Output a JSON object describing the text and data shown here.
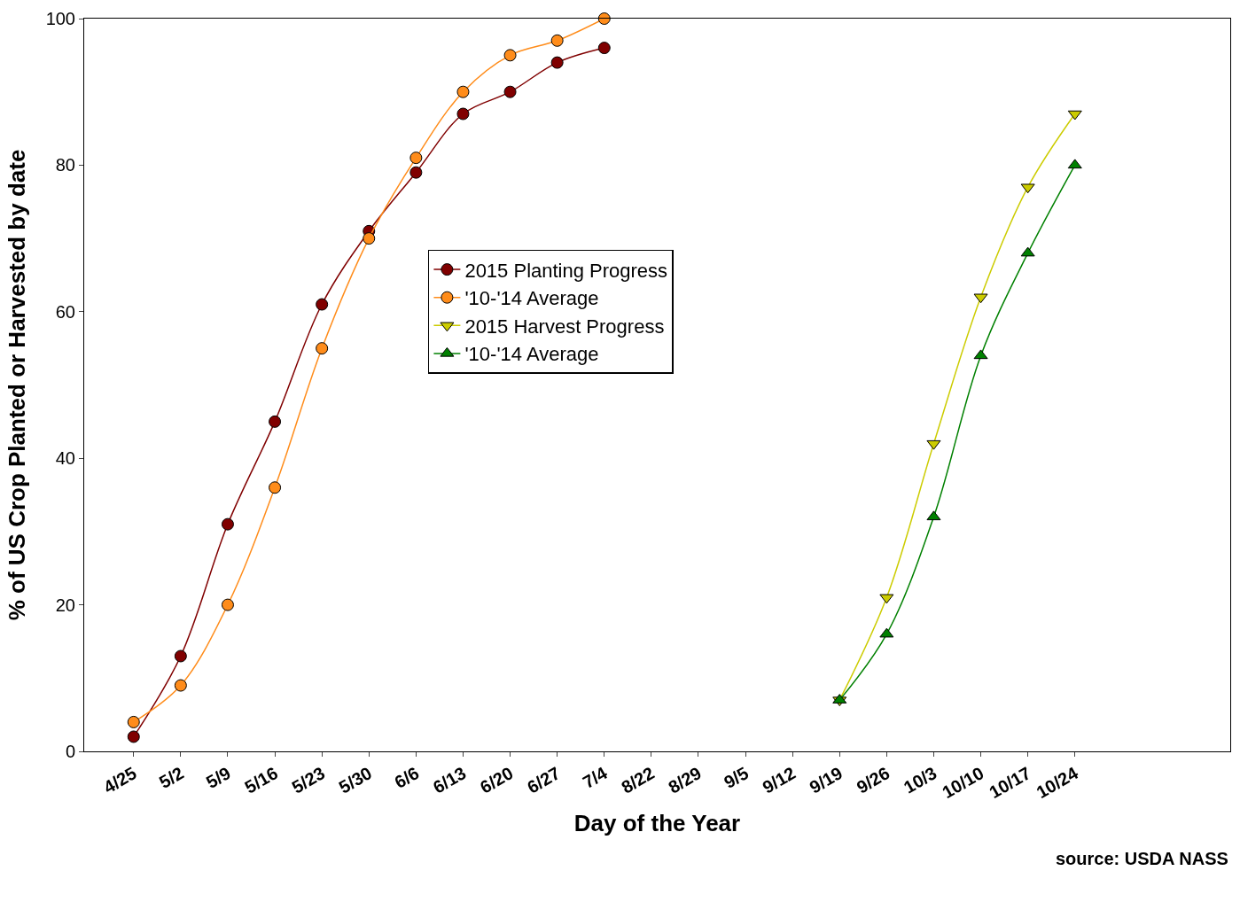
{
  "chart_data": {
    "type": "line",
    "xlabel": "Day of the Year",
    "ylabel": "% of US Crop Planted or Harvested by date",
    "categories": [
      "4/25",
      "5/2",
      "5/9",
      "5/16",
      "5/23",
      "5/30",
      "6/6",
      "6/13",
      "6/20",
      "6/27",
      "7/4",
      "8/22",
      "8/29",
      "9/5",
      "9/12",
      "9/19",
      "9/26",
      "10/3",
      "10/10",
      "10/17",
      "10/24"
    ],
    "series": [
      {
        "name": "2015 Planting Progress",
        "color": "#800000",
        "marker": "circle",
        "values": [
          2,
          13,
          31,
          45,
          61,
          71,
          79,
          87,
          90,
          94,
          96,
          null,
          null,
          null,
          null,
          null,
          null,
          null,
          null,
          null,
          null
        ]
      },
      {
        "name": "'10-'14 Average",
        "color": "#ff8c1a",
        "marker": "circle",
        "values": [
          4,
          9,
          20,
          36,
          55,
          70,
          81,
          90,
          95,
          97,
          100,
          null,
          null,
          null,
          null,
          null,
          null,
          null,
          null,
          null,
          null
        ]
      },
      {
        "name": "2015 Harvest Progress",
        "color": "#cccc00",
        "marker": "triangle-down",
        "values": [
          null,
          null,
          null,
          null,
          null,
          null,
          null,
          null,
          null,
          null,
          null,
          null,
          null,
          null,
          null,
          7,
          21,
          42,
          62,
          77,
          87
        ]
      },
      {
        "name": "'10-'14 Average",
        "color": "#008000",
        "marker": "triangle",
        "values": [
          null,
          null,
          null,
          null,
          null,
          null,
          null,
          null,
          null,
          null,
          null,
          null,
          null,
          null,
          null,
          7,
          16,
          32,
          54,
          68,
          80
        ]
      }
    ],
    "ylim": [
      0,
      100
    ],
    "yticks": [
      0,
      20,
      40,
      60,
      80,
      100
    ],
    "legend": "center",
    "annotations": [
      "source: USDA NASS"
    ]
  }
}
